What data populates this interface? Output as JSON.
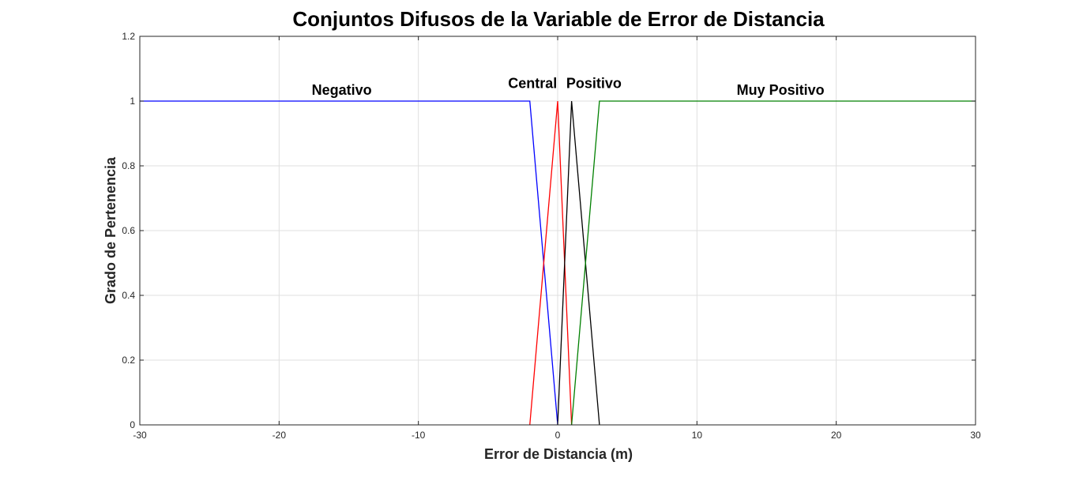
{
  "chart_data": {
    "type": "line",
    "title": "Conjuntos Difusos de la Variable de Error de Distancia",
    "xlabel": "Error de Distancia (m)",
    "ylabel": "Grado de Pertenencia",
    "xlim": [
      -30,
      30
    ],
    "ylim": [
      0,
      1.2
    ],
    "xticks": [
      -30,
      -20,
      -10,
      0,
      10,
      20,
      30
    ],
    "yticks": [
      0,
      0.2,
      0.4,
      0.6,
      0.8,
      1,
      1.2
    ],
    "xtick_labels": [
      "-30",
      "-20",
      "-10",
      "0",
      "10",
      "20",
      "30"
    ],
    "ytick_labels": [
      "0",
      "0.2",
      "0.4",
      "0.6",
      "0.8",
      "1",
      "1.2"
    ],
    "grid": true,
    "series": [
      {
        "name": "Negativo",
        "color": "#0000ff",
        "x": [
          -30,
          -2,
          0
        ],
        "y": [
          1,
          1,
          0
        ]
      },
      {
        "name": "Central",
        "color": "#ff0000",
        "x": [
          -2,
          0,
          1
        ],
        "y": [
          0,
          1,
          0
        ]
      },
      {
        "name": "Positivo",
        "color": "#000000",
        "x": [
          0,
          1,
          3
        ],
        "y": [
          0,
          1,
          0
        ]
      },
      {
        "name": "Muy Positivo",
        "color": "#008000",
        "x": [
          1,
          3,
          30
        ],
        "y": [
          0,
          1,
          1
        ]
      }
    ],
    "annotations": [
      {
        "text": "Negativo",
        "x": -15.5,
        "y": 1.02
      },
      {
        "text": "Central",
        "x": -1.8,
        "y": 1.04
      },
      {
        "text": "Positivo",
        "x": 2.6,
        "y": 1.04
      },
      {
        "text": "Muy Positivo",
        "x": 16,
        "y": 1.02
      }
    ]
  }
}
